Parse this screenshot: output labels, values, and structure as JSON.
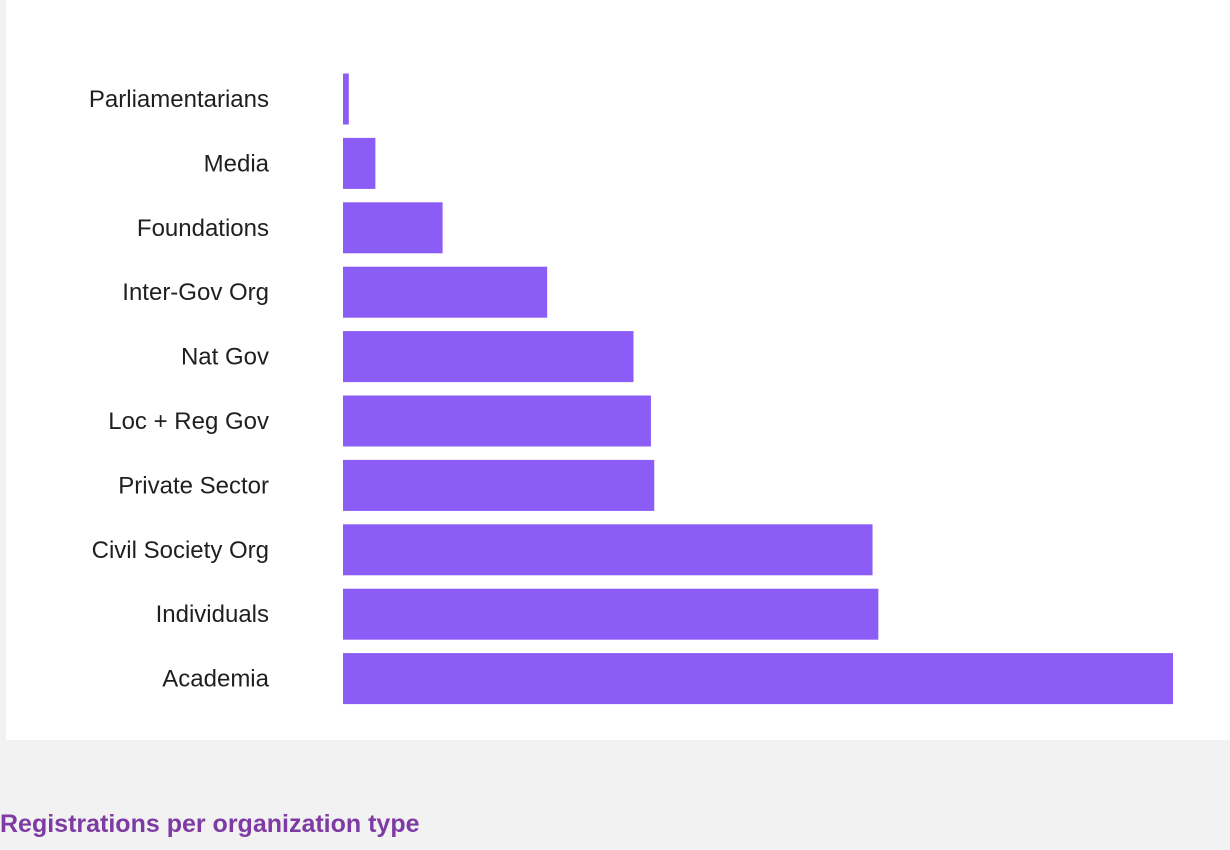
{
  "colors": {
    "bar": "#8b5cf6",
    "caption": "#7e3ba3",
    "card_background": "#ffffff",
    "page_background": "#f2f2f2"
  },
  "caption": "Registrations per organization type",
  "chart_data": {
    "type": "bar",
    "orientation": "horizontal",
    "title": "",
    "xlabel": "",
    "ylabel": "",
    "categories": [
      "Parliamentarians",
      "Media",
      "Foundations",
      "Inter-Gov Org",
      "Nat Gov",
      "Loc + Reg Gov",
      "Private Sector",
      "Civil Society Org",
      "Individuals",
      "Academia"
    ],
    "values": [
      0.7,
      3.9,
      12,
      24.6,
      35,
      37.1,
      37.5,
      63.8,
      64.5,
      100
    ],
    "xlim": [
      0,
      100
    ],
    "grid": false,
    "legend": "none"
  }
}
